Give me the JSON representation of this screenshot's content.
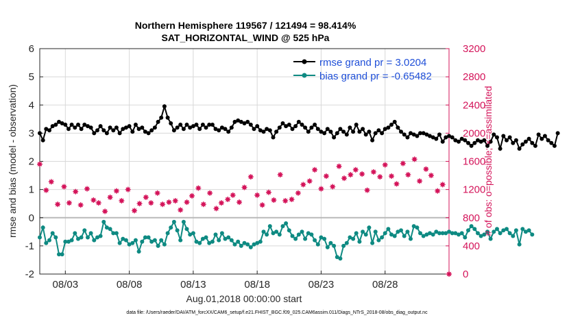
{
  "chart_data": {
    "type": "line",
    "title_line1": "Northern Hemisphere 119567 / 121494 = 98.414%",
    "title_line2": "SAT_HORIZONTAL_WIND @ 525 hPa",
    "xlabel": "Aug.01,2018 00:00:00 start",
    "ylabel_left": "rmse and bias (model - observation)",
    "ylabel_right": "# of obs: o=possible; ×=assimilated",
    "footer": "data file: /Users/raeder/DAI/ATM_forcXX/CAM6_setup/f.e21.FHIST_BGC.f09_025.CAM6assim.011/Diags_NTrS_2018-08/obs_diag_output.nc",
    "xlim": [
      1,
      33
    ],
    "ylim_left": [
      -2,
      6
    ],
    "ylim_right": [
      0,
      3200
    ],
    "x_ticks": [
      3,
      8,
      13,
      18,
      23,
      28
    ],
    "x_tick_labels": [
      "08/03",
      "08/08",
      "08/13",
      "08/18",
      "08/23",
      "08/28"
    ],
    "y_ticks_left": [
      -2,
      -1,
      0,
      1,
      2,
      3,
      4,
      5,
      6
    ],
    "y_tick_labels_left": [
      "-2",
      "-1",
      "0",
      "1",
      "2",
      "3",
      "4",
      "5",
      "6"
    ],
    "y_ticks_right": [
      0,
      400,
      800,
      1200,
      1600,
      2000,
      2400,
      2800,
      3200
    ],
    "y_tick_labels_right": [
      "0",
      "400",
      "800",
      "1200",
      "1600",
      "2000",
      "2400",
      "2800",
      "3200"
    ],
    "zero_line": 0,
    "x_start": 1,
    "x_step": 0.25,
    "legend": {
      "position": "top-right",
      "entries": [
        "rmse grand pr = 3.0204",
        "bias grand pr = -0.65482"
      ]
    },
    "colors": {
      "rmse": "#000000",
      "bias": "#0e8a82",
      "obs": "#d4145a",
      "legend_text": "#1f4fd8",
      "grid": "#d8d8d8",
      "zero": "#b8b8b8"
    },
    "series": [
      {
        "name": "rmse",
        "axis": "left",
        "values": [
          3.0,
          2.75,
          3.15,
          3.1,
          3.25,
          3.3,
          3.4,
          3.35,
          3.3,
          3.15,
          3.3,
          3.2,
          3.3,
          3.15,
          3.3,
          3.25,
          3.2,
          3.0,
          3.1,
          3.25,
          3.1,
          3.0,
          3.2,
          3.1,
          3.2,
          3.0,
          3.15,
          3.2,
          3.25,
          3.05,
          3.3,
          3.15,
          3.2,
          3.05,
          3.0,
          3.1,
          3.2,
          3.4,
          3.55,
          3.95,
          3.55,
          3.35,
          3.1,
          3.2,
          3.3,
          3.15,
          3.3,
          3.2,
          3.25,
          3.3,
          3.15,
          3.3,
          3.2,
          3.3,
          3.3,
          3.15,
          3.1,
          3.2,
          3.15,
          3.05,
          3.2,
          3.4,
          3.45,
          3.4,
          3.35,
          3.4,
          3.3,
          3.15,
          3.25,
          3.1,
          3.05,
          3.15,
          3.1,
          2.85,
          3.05,
          3.2,
          3.35,
          3.25,
          3.3,
          3.15,
          3.25,
          3.4,
          3.3,
          3.2,
          3.05,
          3.2,
          3.3,
          3.15,
          3.05,
          3.0,
          3.15,
          3.05,
          2.85,
          3.0,
          3.15,
          3.05,
          2.95,
          3.2,
          3.05,
          3.3,
          3.05,
          3.15,
          2.95,
          3.05,
          2.75,
          3.0,
          3.1,
          3.0,
          3.15,
          3.2,
          3.3,
          3.4,
          3.2,
          3.05,
          2.95,
          2.85,
          3.0,
          2.95,
          2.9,
          3.0,
          3.0,
          2.95,
          2.9,
          2.85,
          2.8,
          2.95,
          2.7,
          2.85,
          2.9,
          2.85,
          2.75,
          2.7,
          2.8,
          2.75,
          2.65,
          2.55,
          2.65,
          2.75,
          2.7,
          2.75,
          2.55,
          2.7,
          2.95,
          2.85,
          2.45,
          2.9,
          2.75,
          2.85,
          2.65,
          2.75,
          2.45,
          2.6,
          2.7,
          2.8,
          2.65,
          2.55,
          2.95,
          2.8,
          2.9,
          2.75,
          2.65,
          2.55,
          3.0
        ]
      },
      {
        "name": "bias",
        "axis": "left",
        "values": [
          -0.7,
          -0.35,
          -0.9,
          -0.8,
          -0.55,
          -0.7,
          -1.3,
          -1.3,
          -0.85,
          -0.85,
          -0.8,
          -0.55,
          -0.75,
          -0.7,
          -0.45,
          -0.7,
          -0.55,
          -0.8,
          -0.7,
          -0.65,
          -0.15,
          -0.35,
          -0.4,
          -0.55,
          -0.55,
          -0.9,
          -0.75,
          -0.8,
          -0.95,
          -0.9,
          -0.8,
          -1.2,
          -0.85,
          -0.7,
          -0.7,
          -0.85,
          -0.8,
          -1.0,
          -0.8,
          -0.95,
          -0.55,
          -0.35,
          -0.15,
          -0.45,
          -0.8,
          -0.15,
          -0.4,
          -0.6,
          -0.55,
          -0.85,
          -0.9,
          -0.75,
          -0.7,
          -0.9,
          -0.85,
          -0.6,
          -0.8,
          -0.55,
          -0.75,
          -0.7,
          -0.8,
          -0.95,
          -0.85,
          -1.0,
          -0.9,
          -0.95,
          -1.05,
          -0.95,
          -0.9,
          -0.85,
          -0.5,
          -0.6,
          -0.3,
          -0.55,
          -0.5,
          -0.6,
          -0.3,
          -0.2,
          -0.45,
          -0.65,
          -0.75,
          -0.6,
          -0.5,
          -0.75,
          -0.55,
          -0.6,
          -0.8,
          -0.95,
          -0.7,
          -0.75,
          -1.05,
          -0.9,
          -1.0,
          -1.4,
          -1.45,
          -1.0,
          -0.9,
          -0.7,
          -0.75,
          -0.55,
          -0.85,
          -0.5,
          -0.6,
          -0.35,
          -0.9,
          -0.5,
          -0.8,
          -0.7,
          -0.55,
          -0.4,
          -0.6,
          -0.65,
          -0.5,
          -0.45,
          -0.65,
          -0.5,
          -0.75,
          -0.3,
          -0.35,
          -0.55,
          -0.65,
          -0.6,
          -0.55,
          -0.6,
          -0.5,
          -0.55,
          -0.55,
          -0.55,
          -0.5,
          -0.55,
          -0.55,
          -0.6,
          -0.55,
          -0.7,
          -0.45,
          -0.3,
          -0.4,
          -0.55,
          -0.65,
          -0.6,
          -0.5,
          -0.75,
          -0.5,
          -0.4,
          -0.55,
          -0.45,
          -0.4,
          -0.55,
          -0.65,
          -0.45,
          -0.95,
          -0.4,
          -0.5,
          -0.45,
          -0.6
        ]
      }
    ],
    "obs_points": {
      "name": "# of obs",
      "axis": "right",
      "marker": "asterisk",
      "x": [
        1.0,
        1.5,
        1.9,
        2.4,
        2.9,
        3.3,
        3.8,
        4.2,
        4.7,
        5.2,
        5.6,
        6.1,
        6.5,
        7.0,
        7.4,
        7.9,
        8.4,
        8.8,
        9.3,
        9.7,
        10.2,
        10.6,
        11.1,
        11.6,
        12.0,
        12.5,
        12.9,
        13.4,
        13.8,
        14.3,
        14.8,
        15.2,
        15.7,
        16.1,
        16.6,
        17.0,
        17.5,
        18.0,
        18.4,
        18.9,
        19.3,
        19.8,
        20.2,
        20.7,
        21.2,
        21.6,
        22.1,
        22.5,
        23.0,
        23.4,
        23.9,
        24.4,
        24.8,
        25.3,
        25.7,
        26.2,
        26.6,
        27.1,
        27.6,
        28.0,
        28.5,
        28.9,
        29.4,
        29.8,
        30.3,
        30.7,
        31.2,
        31.6,
        32.1,
        32.5,
        33.0
      ],
      "values": [
        1560,
        1190,
        1310,
        990,
        1240,
        1010,
        1170,
        980,
        1210,
        1050,
        1010,
        890,
        1090,
        1180,
        1040,
        1200,
        900,
        1000,
        1090,
        1010,
        1150,
        990,
        1020,
        1040,
        910,
        1020,
        1110,
        1220,
        990,
        1150,
        930,
        1010,
        1060,
        1120,
        1020,
        1230,
        1380,
        1120,
        980,
        1160,
        1050,
        1410,
        1040,
        1060,
        1150,
        1270,
        1320,
        1480,
        1210,
        1390,
        1240,
        1530,
        1360,
        1410,
        1480,
        1420,
        1190,
        1450,
        1380,
        1550,
        1390,
        1280,
        1570,
        1410,
        1630,
        1320,
        1490,
        1400,
        1180,
        1270,
        0
      ]
    }
  }
}
